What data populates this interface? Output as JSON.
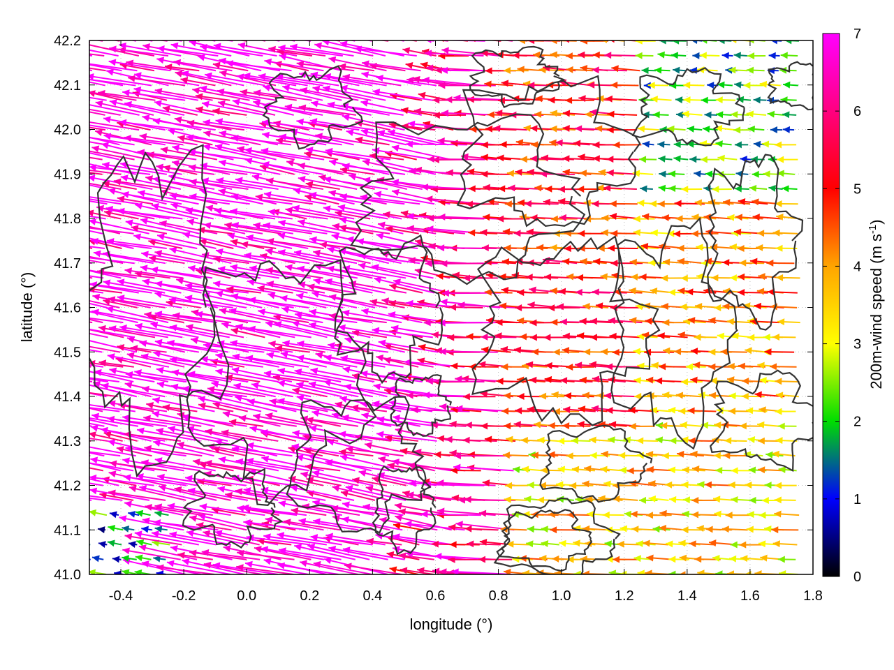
{
  "chart_data": {
    "type": "vector-field",
    "xlabel": "longitude (°)",
    "ylabel": "latitude (°)",
    "xlim": [
      -0.5,
      1.8
    ],
    "ylim": [
      41.0,
      42.2
    ],
    "xticks": [
      -0.4,
      -0.2,
      0.0,
      0.2,
      0.4,
      0.6,
      0.8,
      1.0,
      1.2,
      1.4,
      1.6,
      1.8
    ],
    "yticks": [
      41.0,
      41.1,
      41.2,
      41.3,
      41.4,
      41.5,
      41.6,
      41.7,
      41.8,
      41.9,
      42.0,
      42.1,
      42.2
    ],
    "grid": true,
    "colorbar": {
      "label": "200m-wind speed (m s",
      "label_sup": "-1",
      "label_end": ")",
      "range": [
        0,
        7
      ],
      "ticks": [
        0,
        1,
        2,
        3,
        4,
        5,
        6,
        7
      ],
      "colors": [
        "#000000",
        "#0000ff",
        "#00dd00",
        "#ffff00",
        "#ffa500",
        "#ff0000",
        "#ff00ff"
      ]
    },
    "wind_regions": [
      {
        "region": "west",
        "lon": [
          -0.5,
          0.6
        ],
        "lat": [
          41.0,
          42.2
        ],
        "speed_ms": 7,
        "direction": "westward"
      },
      {
        "region": "central",
        "lon": [
          0.6,
          1.2
        ],
        "lat": [
          41.2,
          42.2
        ],
        "speed_ms": 5,
        "direction": "westward"
      },
      {
        "region": "southeast",
        "lon": [
          0.8,
          1.8
        ],
        "lat": [
          41.0,
          41.3
        ],
        "speed_ms": 3.5,
        "direction": "westward"
      },
      {
        "region": "northeast",
        "lon": [
          1.2,
          1.8
        ],
        "lat": [
          41.8,
          42.2
        ],
        "speed_ms": 2,
        "direction": "westward"
      }
    ]
  }
}
